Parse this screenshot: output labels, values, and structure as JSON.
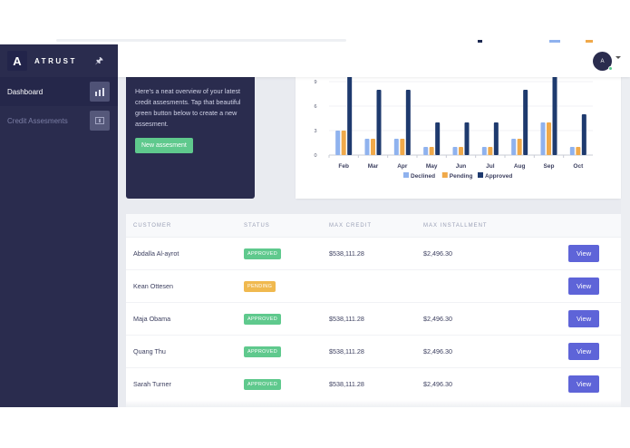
{
  "sidebar": {
    "brand": {
      "mark": "A",
      "name": "ATRUST",
      "pin_icon": "pin-icon"
    },
    "items": [
      {
        "label": "Dashboard",
        "icon": "bar-chart-icon",
        "active": true
      },
      {
        "label": "Credit Assesments",
        "icon": "card-icon",
        "active": false
      }
    ]
  },
  "header": {
    "avatar_initial": "A",
    "avatar_status_color": "#55c88a"
  },
  "welcome": {
    "text": "Here's a neat overview of your latest credit assesments. Tap that beautiful green button below to create a new assesment.",
    "button_label": "New assesment"
  },
  "chart_data": {
    "type": "bar",
    "title": "",
    "xlabel": "",
    "ylabel": "",
    "categories": [
      "Feb",
      "Mar",
      "Apr",
      "May",
      "Jun",
      "Jul",
      "Aug",
      "Sep",
      "Oct"
    ],
    "series": [
      {
        "name": "Declined",
        "color": "#8fb2ee",
        "values": [
          3,
          2,
          2,
          1,
          1,
          1,
          2,
          4,
          1
        ]
      },
      {
        "name": "Pending",
        "color": "#f0a94a",
        "values": [
          3,
          2,
          2,
          1,
          1,
          1,
          2,
          4,
          1
        ]
      },
      {
        "name": "Approved",
        "color": "#1e3a6e",
        "values": [
          10,
          8,
          8,
          4,
          4,
          4,
          8,
          10,
          5
        ]
      }
    ],
    "yticks": [
      0,
      3,
      6,
      9
    ],
    "ylim": [
      0,
      10
    ],
    "grid": true,
    "legend_position": "bottom"
  },
  "table": {
    "headers": [
      "CUSTOMER",
      "STATUS",
      "MAX CREDIT",
      "MAX INSTALLMENT"
    ],
    "rows": [
      {
        "customer": "Abdalla Al-ayrot",
        "status": "APPROVED",
        "max_credit": "$538,111.28",
        "max_installment": "$2,496.30",
        "action": "View"
      },
      {
        "customer": "Kean Ottesen",
        "status": "PENDING",
        "max_credit": "",
        "max_installment": "",
        "action": "View"
      },
      {
        "customer": "Maja Obama",
        "status": "APPROVED",
        "max_credit": "$538,111.28",
        "max_installment": "$2,496.30",
        "action": "View"
      },
      {
        "customer": "Quang Thu",
        "status": "APPROVED",
        "max_credit": "$538,111.28",
        "max_installment": "$2,496.30",
        "action": "View"
      },
      {
        "customer": "Sarah Turner",
        "status": "APPROVED",
        "max_credit": "$538,111.28",
        "max_installment": "$2,496.30",
        "action": "View"
      }
    ]
  },
  "colors": {
    "sidebar_bg": "#2a2c4e",
    "accent_green": "#5fc98d",
    "accent_pending": "#f0b94f",
    "view_button": "#5e64d8"
  }
}
